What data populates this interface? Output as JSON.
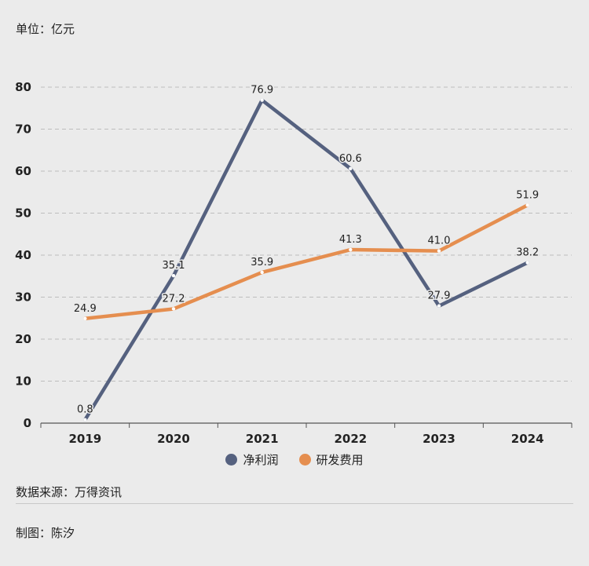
{
  "header": {
    "unit": "单位：亿元"
  },
  "footer": {
    "source": "数据来源：万得资讯",
    "author": "制图：陈汐"
  },
  "colors": {
    "net_profit": "#55617f",
    "rd_expense": "#e58e4f",
    "grid": "#bdbdbd",
    "axis": "#555555"
  },
  "chart_data": {
    "type": "line",
    "categories": [
      "2019",
      "2020",
      "2021",
      "2022",
      "2023",
      "2024"
    ],
    "ylim": [
      0,
      80
    ],
    "yticks": [
      0,
      10,
      20,
      30,
      40,
      50,
      60,
      70,
      80
    ],
    "grid": true,
    "legend_position": "bottom",
    "series": [
      {
        "name": "净利润",
        "values": [
          0.8,
          35.1,
          76.9,
          60.6,
          27.9,
          38.2
        ],
        "labels": [
          "0.8",
          "35.1",
          "76.9",
          "60.6",
          "27.9",
          "38.2"
        ]
      },
      {
        "name": "研发费用",
        "values": [
          24.9,
          27.2,
          35.9,
          41.3,
          41.0,
          51.9
        ],
        "labels": [
          "24.9",
          "27.2",
          "35.9",
          "41.3",
          "41.0",
          "51.9"
        ]
      }
    ]
  }
}
